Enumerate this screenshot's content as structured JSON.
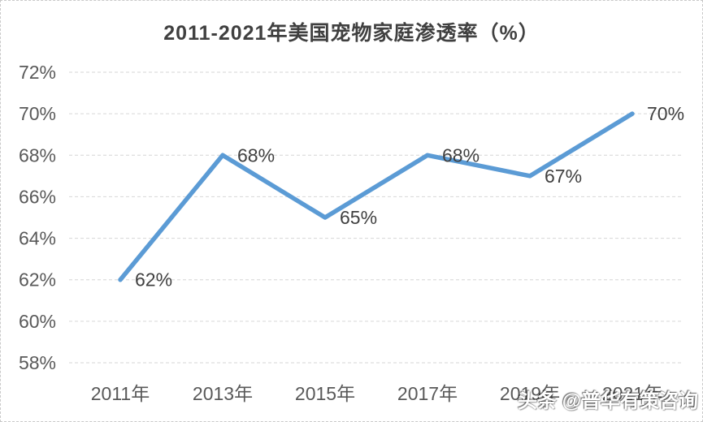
{
  "chart_data": {
    "type": "line",
    "title": "2011-2021年美国宠物家庭渗透率（%）",
    "xlabel": "",
    "ylabel": "",
    "categories": [
      "2011年",
      "2013年",
      "2015年",
      "2017年",
      "2019年",
      "2021年"
    ],
    "values": [
      62,
      68,
      65,
      68,
      67,
      70
    ],
    "data_labels": [
      "62%",
      "68%",
      "65%",
      "68%",
      "67%",
      "70%"
    ],
    "ylim": [
      58,
      72
    ],
    "ytick_step": 2,
    "ytick_suffix": "%",
    "grid": true,
    "legend": "none",
    "colors": {
      "line": "#5B9BD5",
      "gridline": "#D6D6D6",
      "title_text": "#404040",
      "tick_text": "#595959",
      "data_label_text": "#404040",
      "background": "#FFFFFF",
      "border": "#C9C9C9"
    }
  },
  "watermark": {
    "text": "头条 @普华有策咨询"
  }
}
